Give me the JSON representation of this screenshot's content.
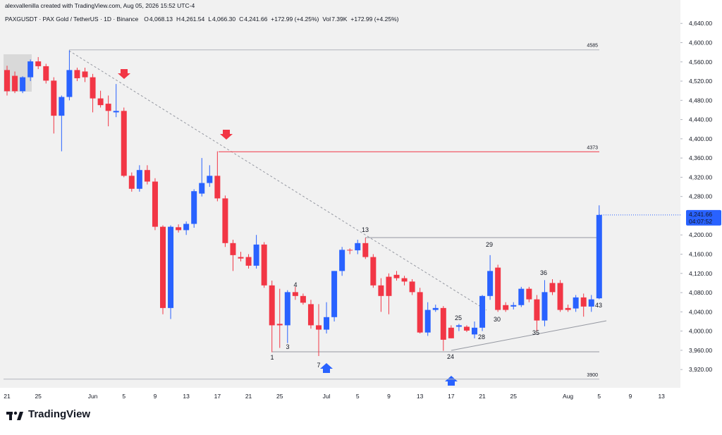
{
  "header": {
    "credit": "alexvallenilla created with TradingView.com, Aug 05, 2026 15:52 UTC-4",
    "symbol": "PAXGUSDT · PAX Gold / TetherUS · 1D · Binance",
    "stats": [
      "O",
      "4,068.13",
      "H",
      "4,261.54",
      "L",
      "4,066.30",
      "C",
      "4,241.66",
      "+172.99 (+4.25%)",
      "Vol",
      "7.39K",
      "+172.99 (+4.25%)"
    ]
  },
  "footer": {
    "logo": "TradingView"
  },
  "chart_data": {
    "type": "candlestick",
    "up_color": "#2962ff",
    "down_color": "#f23645",
    "categories": [
      "21",
      null,
      null,
      null,
      "25",
      null,
      null,
      null,
      null,
      null,
      null,
      "Jun",
      null,
      null,
      null,
      "5",
      null,
      null,
      null,
      "9",
      null,
      null,
      null,
      "13",
      null,
      null,
      null,
      "17",
      null,
      null,
      null,
      "21",
      null,
      null,
      null,
      "25",
      null,
      null,
      null,
      null,
      null,
      "Jul",
      null,
      null,
      null,
      "5",
      null,
      null,
      null,
      "9",
      null,
      null,
      null,
      "13",
      null,
      null,
      null,
      "17",
      null,
      null,
      null,
      "21",
      null,
      null,
      null,
      "25",
      null,
      null,
      null,
      null,
      null,
      null,
      "Aug",
      null,
      null,
      null,
      "5",
      null,
      null,
      null,
      "9",
      null,
      null,
      null,
      "13"
    ],
    "open": [
      4543,
      4531,
      4499,
      4528,
      4561,
      4551,
      4521,
      4448,
      4487,
      4543,
      4540,
      4528,
      4484,
      4473,
      4455,
      4458,
      4323,
      4296,
      4335,
      4311,
      4217,
      4048,
      4216,
      4210,
      4223,
      4286,
      4308,
      4323,
      4276,
      4183,
      4154,
      4154,
      4136,
      4180,
      4095,
      4015,
      4012,
      4081,
      4073,
      4056,
      4012,
      4003,
      4029,
      4125,
      4169,
      4168,
      4183,
      4154,
      4095,
      4113,
      4117,
      4110,
      4103,
      4081,
      3997,
      4044,
      4048,
      4007,
      4009,
      4009,
      3993,
      4007,
      4073,
      4132,
      4054,
      4051,
      4054,
      4088,
      4066,
      4022,
      4100,
      4100,
      4048,
      4047,
      4070,
      4051,
      4068.13,
      null,
      null,
      null,
      null,
      null,
      null,
      null,
      null
    ],
    "high": [
      4552,
      4540,
      4530,
      4565,
      4570,
      4556,
      4528,
      4490,
      4584,
      4548,
      4548,
      4535,
      4500,
      4490,
      4514,
      4465,
      4330,
      4345,
      4345,
      4318,
      4220,
      4220,
      4222,
      4228,
      4295,
      4360,
      4345,
      4374,
      4282,
      4190,
      4165,
      4160,
      4200,
      4185,
      4105,
      4088,
      4085,
      4092,
      4078,
      4065,
      4056,
      4060,
      4125,
      4175,
      4172,
      4190,
      4194,
      4160,
      4110,
      4120,
      4125,
      4115,
      4108,
      4090,
      4060,
      4055,
      4052,
      4012,
      4015,
      4012,
      4020,
      4075,
      4158,
      4138,
      4060,
      4060,
      4092,
      4092,
      4075,
      4106,
      4108,
      4106,
      4055,
      4075,
      4078,
      4075,
      4261.54,
      null,
      null,
      null,
      null,
      null,
      null,
      null,
      null
    ],
    "low": [
      4490,
      4495,
      4495,
      4520,
      4545,
      4515,
      4411,
      4374,
      4480,
      4520,
      4518,
      4455,
      4465,
      4426,
      4445,
      4320,
      4290,
      4290,
      4305,
      4210,
      4035,
      4025,
      4205,
      4200,
      4215,
      4280,
      4300,
      4270,
      4175,
      4125,
      4145,
      4130,
      4130,
      4090,
      3956,
      3965,
      3975,
      4065,
      4055,
      4005,
      3948,
      3995,
      4020,
      4115,
      4160,
      4160,
      4150,
      4090,
      4040,
      4035,
      4105,
      4095,
      4075,
      3995,
      3990,
      4040,
      3959,
      3985,
      4000,
      3998,
      3985,
      4000,
      4065,
      4040,
      4040,
      4045,
      4050,
      4060,
      4000,
      4010,
      4075,
      4040,
      4040,
      4040,
      4030,
      4040,
      4066.3,
      null,
      null,
      null,
      null,
      null,
      null,
      null,
      null
    ],
    "close": [
      4499,
      4499,
      4528,
      4561,
      4551,
      4521,
      4448,
      4487,
      4543,
      4526,
      4528,
      4484,
      4470,
      4458,
      4458,
      4323,
      4296,
      4335,
      4311,
      4217,
      4048,
      4217,
      4210,
      4223,
      4291,
      4308,
      4323,
      4276,
      4183,
      4158,
      4151,
      4136,
      4180,
      4095,
      4012,
      4012,
      4081,
      4073,
      4059,
      4012,
      4003,
      4029,
      4125,
      4169,
      4168,
      4183,
      4154,
      4095,
      4073,
      4073,
      4110,
      4103,
      4081,
      3997,
      4044,
      4048,
      3982,
      3985,
      4012,
      4001,
      4007,
      4073,
      4125,
      4044,
      4044,
      4054,
      4088,
      4066,
      4022,
      4081,
      4081,
      4044,
      4044,
      4070,
      4051,
      4066,
      4241.66,
      null,
      null,
      null,
      null,
      null,
      null,
      null,
      null
    ],
    "ylim": [
      3885,
      4677
    ],
    "yticks": [
      {
        "value": 3920,
        "label": "3,920.00"
      },
      {
        "value": 3960,
        "label": "3,960.00"
      },
      {
        "value": 4000,
        "label": "4,000.00"
      },
      {
        "value": 4040,
        "label": "4,040.00"
      },
      {
        "value": 4080,
        "label": "4,080.00"
      },
      {
        "value": 4120,
        "label": "4,120.00"
      },
      {
        "value": 4160,
        "label": "4,160.00"
      },
      {
        "value": 4200,
        "label": "4,200.00"
      },
      {
        "value": 4280,
        "label": "4,280.00"
      },
      {
        "value": 4320,
        "label": "4,320.00"
      },
      {
        "value": 4360,
        "label": "4,360.00"
      },
      {
        "value": 4400,
        "label": "4,400.00"
      },
      {
        "value": 4440,
        "label": "4,440.00"
      },
      {
        "value": 4480,
        "label": "4,480.00"
      },
      {
        "value": 4520,
        "label": "4,520.00"
      },
      {
        "value": 4560,
        "label": "4,560.00"
      },
      {
        "value": 4600,
        "label": "4,600.00"
      },
      {
        "value": 4640,
        "label": "4,640.00"
      }
    ],
    "levels": [
      {
        "value": 4585,
        "color": "#b2b5be"
      },
      {
        "value": 4373,
        "color": "#f23645"
      },
      {
        "value": 3900,
        "color": "#b2b5be"
      }
    ],
    "last_price": {
      "value": 4241.66,
      "label": "4,241.66",
      "countdown": "04:07:52"
    },
    "annotations": [
      "1",
      "3",
      "4",
      "7",
      "13",
      "24",
      "25",
      "28",
      "29",
      "30",
      "35",
      "36",
      "43"
    ]
  }
}
